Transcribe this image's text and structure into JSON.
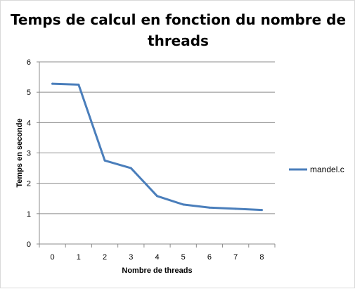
{
  "chart_data": {
    "type": "line",
    "title": "Temps de calcul en fonction du nombre de threads",
    "xlabel": "Nombre de threads",
    "ylabel": "Temps en seconde",
    "x": [
      0,
      1,
      2,
      3,
      4,
      5,
      6,
      7,
      8
    ],
    "x_tick_labels": [
      "0",
      "1",
      "2",
      "3",
      "4",
      "5",
      "6",
      "7",
      "8"
    ],
    "y_tick_labels": [
      "0",
      "1",
      "2",
      "3",
      "4",
      "5",
      "6"
    ],
    "ylim": [
      0,
      6
    ],
    "grid": true,
    "legend_position": "right",
    "series": [
      {
        "name": "mandel.c",
        "color": "#4a7ebb",
        "values": [
          5.28,
          5.25,
          2.75,
          2.5,
          1.58,
          1.3,
          1.2,
          1.16,
          1.12
        ]
      }
    ]
  }
}
